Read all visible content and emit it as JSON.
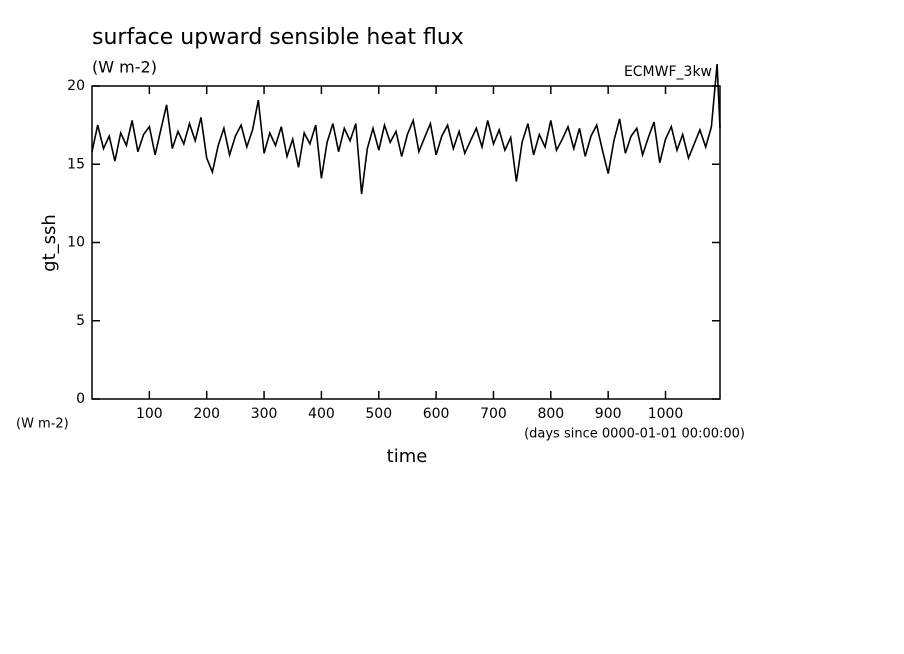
{
  "chart_data": {
    "type": "line",
    "title": "surface upward sensible heat flux",
    "subtitle": "(W m-2)",
    "annotation": "ECMWF_3kw",
    "y_label": "gt_ssh",
    "y_unit": "(W m-2)",
    "x_label": "time",
    "x_unit": "(days since 0000-01-01 00:00:00)",
    "color": "#000000",
    "x": [
      0,
      10,
      20,
      30,
      40,
      50,
      60,
      70,
      80,
      90,
      100,
      110,
      120,
      130,
      140,
      150,
      160,
      170,
      180,
      190,
      200,
      210,
      220,
      230,
      240,
      250,
      260,
      270,
      280,
      290,
      300,
      310,
      320,
      330,
      340,
      350,
      360,
      370,
      380,
      390,
      400,
      410,
      420,
      430,
      440,
      450,
      460,
      470,
      480,
      490,
      500,
      510,
      520,
      530,
      540,
      550,
      560,
      570,
      580,
      590,
      600,
      610,
      620,
      630,
      640,
      650,
      660,
      670,
      680,
      690,
      700,
      710,
      720,
      730,
      740,
      750,
      760,
      770,
      780,
      790,
      800,
      810,
      820,
      830,
      840,
      850,
      860,
      870,
      880,
      890,
      900,
      910,
      920,
      930,
      940,
      950,
      960,
      970,
      980,
      990,
      1000,
      1010,
      1020,
      1030,
      1040,
      1050,
      1060,
      1070,
      1080,
      1090,
      1095
    ],
    "values": [
      15.8,
      17.5,
      16.0,
      16.8,
      15.2,
      17.0,
      16.2,
      17.8,
      15.8,
      16.9,
      17.4,
      15.6,
      17.2,
      18.8,
      16.0,
      17.1,
      16.3,
      17.6,
      16.5,
      18.0,
      15.4,
      14.5,
      16.2,
      17.3,
      15.6,
      16.8,
      17.5,
      16.1,
      17.2,
      19.1,
      15.7,
      17.0,
      16.2,
      17.4,
      15.5,
      16.6,
      14.8,
      17.0,
      16.3,
      17.5,
      14.1,
      16.4,
      17.6,
      15.8,
      17.3,
      16.5,
      17.6,
      13.1,
      16.0,
      17.3,
      15.9,
      17.5,
      16.4,
      17.1,
      15.5,
      16.9,
      17.8,
      15.8,
      16.7,
      17.6,
      15.6,
      16.8,
      17.5,
      16.0,
      17.1,
      15.7,
      16.5,
      17.3,
      16.1,
      17.8,
      16.3,
      17.2,
      15.9,
      16.7,
      13.9,
      16.4,
      17.6,
      15.6,
      16.9,
      16.1,
      17.8,
      15.9,
      16.6,
      17.4,
      16.0,
      17.3,
      15.5,
      16.8,
      17.5,
      15.9,
      14.4,
      16.5,
      17.9,
      15.7,
      16.8,
      17.3,
      15.6,
      16.7,
      17.7,
      15.1,
      16.6,
      17.4,
      15.9,
      16.9,
      15.4,
      16.3,
      17.2,
      16.1,
      17.4,
      21.4,
      17.3
    ],
    "xlim": [
      0,
      1095
    ],
    "xticks": [
      100,
      200,
      300,
      400,
      500,
      600,
      700,
      800,
      900,
      1000
    ],
    "ylim": [
      0,
      20
    ],
    "yticks": [
      0,
      5,
      10,
      15,
      20
    ]
  }
}
